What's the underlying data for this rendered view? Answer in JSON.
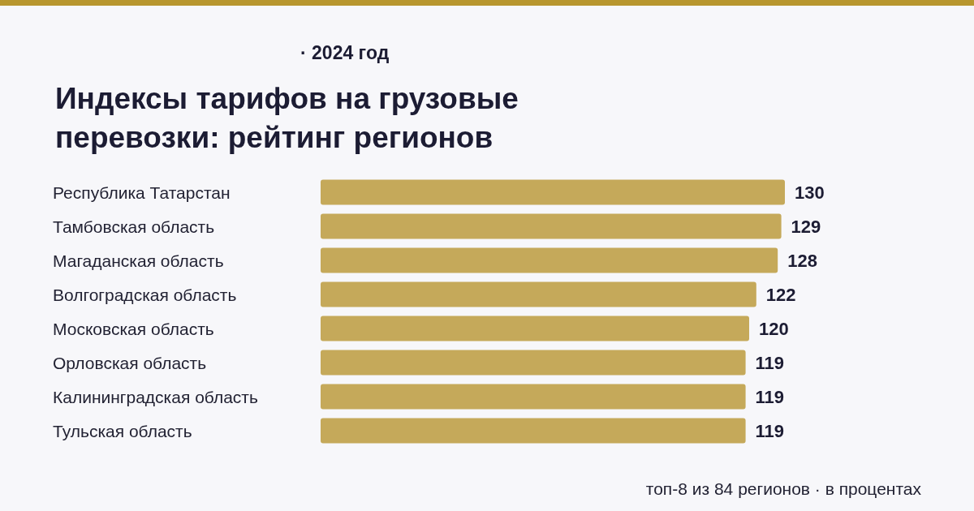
{
  "chart_data": {
    "type": "bar",
    "orientation": "horizontal",
    "subtitle": "· 2024 год",
    "title": "Индексы тарифов на грузовые перевозки: рейтинг регионов",
    "categories": [
      "Республика Татарстан",
      "Тамбовская область",
      "Магаданская область",
      "Волгоградская область",
      "Московская область",
      "Орловская область",
      "Калининградская область",
      "Тульская область"
    ],
    "values": [
      130,
      129,
      128,
      122,
      120,
      119,
      119,
      119
    ],
    "color": "#c5a95a",
    "data_labels": true,
    "annotations": [
      "топ-8 из 84 регионов · в процентах"
    ]
  }
}
